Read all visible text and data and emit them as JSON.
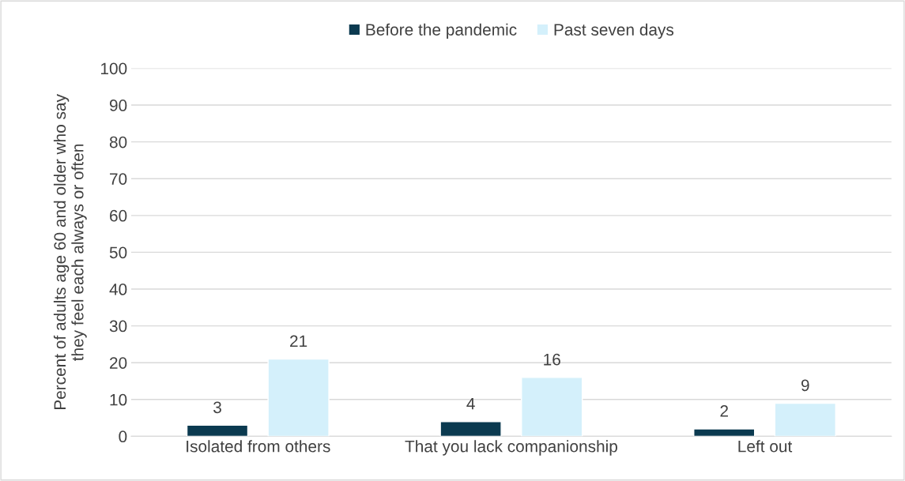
{
  "chart_data": {
    "type": "bar",
    "categories": [
      "Isolated from others",
      "That you lack companionship",
      "Left out"
    ],
    "series": [
      {
        "name": "Before the pandemic",
        "color": "#0b3a50",
        "values": [
          3,
          4,
          2
        ]
      },
      {
        "name": "Past seven days",
        "color": "#d4f0fb",
        "values": [
          21,
          16,
          9
        ]
      }
    ],
    "ylabel": "Percent of adults age 60 and older who say\nthey feel each always or often",
    "ylim": [
      0,
      100
    ],
    "yticks": [
      0,
      10,
      20,
      30,
      40,
      50,
      60,
      70,
      80,
      90,
      100
    ],
    "grid": "y",
    "legend": "top",
    "data_labels": true
  }
}
